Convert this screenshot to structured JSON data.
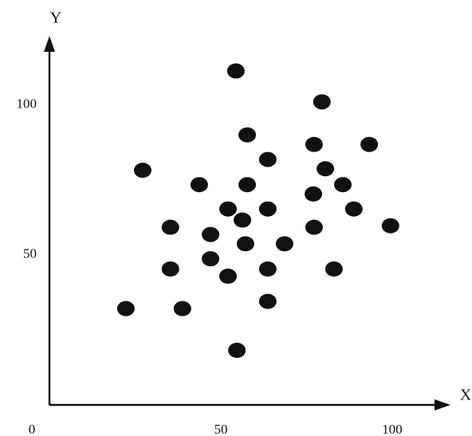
{
  "chart_data": {
    "type": "scatter",
    "x_label": "X",
    "y_label": "Y",
    "x": [
      54.4,
      79.5,
      57.7,
      77.2,
      93.3,
      63.7,
      27.2,
      80.5,
      85.6,
      43.7,
      57.7,
      77,
      52.1,
      63.7,
      88.8,
      56.3,
      35.3,
      77.2,
      99.5,
      47,
      57.2,
      68.6,
      47,
      35.3,
      63.7,
      83,
      52.1,
      63.7,
      22.3,
      38.8,
      54.7
    ],
    "series": [
      {
        "color": "#111111",
        "values": [
          111.3,
          101,
          90,
          86.8,
          86.8,
          81.8,
          78.2,
          78.7,
          73.4,
          73.4,
          73.4,
          70.3,
          65.3,
          65.3,
          65.3,
          61.6,
          59.2,
          59.2,
          59.7,
          56.8,
          53.7,
          53.7,
          48.7,
          45.3,
          45.3,
          45.3,
          42.9,
          34.5,
          32.1,
          32.1,
          18.2
        ]
      }
    ],
    "xlim": [
      0,
      117
    ],
    "ylim": [
      0,
      123
    ],
    "xticks": [
      0,
      50,
      100
    ],
    "yticks": [
      50,
      100
    ],
    "grid": false
  }
}
